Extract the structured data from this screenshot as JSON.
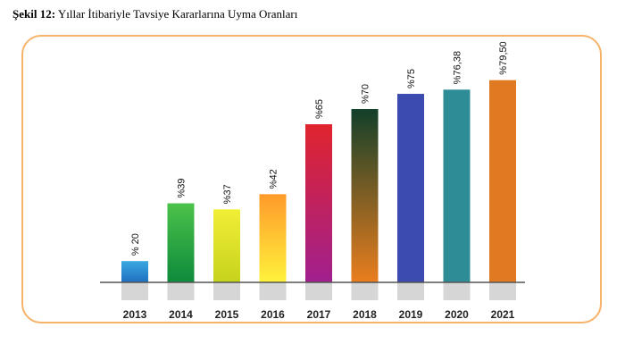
{
  "figure": {
    "caption_lead": "Şekil 12:",
    "caption_text": "Yıllar İtibariyle Tavsiye Kararlarına Uyma Oranları"
  },
  "chart_data": {
    "type": "bar",
    "title": "",
    "xlabel": "",
    "ylabel": "",
    "categories": [
      "2013",
      "2014",
      "2015",
      "2016",
      "2017",
      "2018",
      "2019",
      "2020",
      "2021"
    ],
    "values": [
      20,
      39,
      37,
      42,
      65,
      70,
      75,
      76.38,
      79.5
    ],
    "data_labels": [
      "% 20",
      "%39",
      "%37",
      "%42",
      "%65",
      "%70",
      "%75",
      "%76,38",
      "%79,50"
    ],
    "ylim": [
      13,
      80
    ],
    "grid": false,
    "legend": "none",
    "bar_colors": [
      [
        "#3aa8e0",
        "#1f6fc0"
      ],
      [
        "#4cc24a",
        "#0d8a3c"
      ],
      [
        "#f2ee36",
        "#c6d21c"
      ],
      [
        "#ff9a2a",
        "#fff23c"
      ],
      [
        "#e0242e",
        "#a0208e"
      ],
      [
        "#123f2a",
        "#ea7e1e"
      ],
      [
        "#3c4bb0",
        "#3c4bb0"
      ],
      [
        "#2e8c96",
        "#2e8c96"
      ],
      [
        "#e07a22",
        "#e07a22"
      ]
    ],
    "baseline_color": "#555555",
    "stub_color": "#d6d6d6",
    "frame_color": "#f6b36a"
  }
}
